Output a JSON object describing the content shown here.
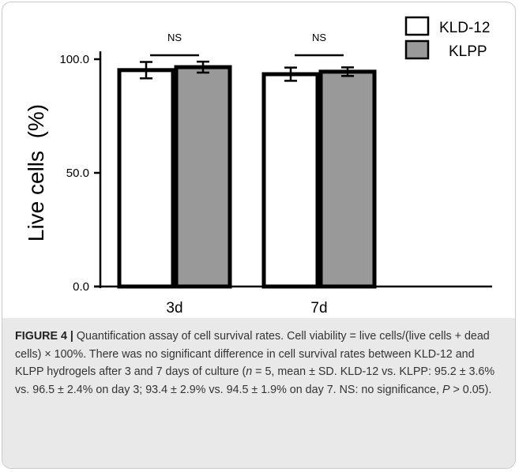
{
  "chart_data": {
    "type": "bar",
    "categories": [
      "3d",
      "7d"
    ],
    "ylabel": "Live cells  (%)",
    "ylim": [
      0,
      100
    ],
    "yticks": [
      0,
      50,
      100
    ],
    "ytick_labels": [
      "0.0",
      "50.0",
      "100.0"
    ],
    "series": [
      {
        "name": "KLD-12",
        "color": "#ffffff",
        "values": [
          95.2,
          93.4
        ],
        "errors": [
          3.6,
          2.9
        ]
      },
      {
        "name": "KLPP",
        "color": "#999999",
        "values": [
          96.5,
          94.5
        ],
        "errors": [
          2.4,
          1.9
        ]
      }
    ],
    "annotations": [
      "NS",
      "NS"
    ],
    "legend_position": "top-right",
    "grid": false
  },
  "caption": {
    "label": "FIGURE 4 |",
    "text_1": " Quantification assay of cell survival rates. Cell viability = live cells/(live cells + dead cells) × 100%. There was no significant difference in cell survival rates between KLD-12 and KLPP hydrogels after 3 and 7 days of culture (",
    "n_symbol": "n",
    "text_2": " = 5, mean ± SD. KLD-12 vs. KLPP: 95.2 ± 3.6% vs. 96.5 ± 2.4% on day 3; 93.4 ± 2.9% vs. 94.5 ± 1.9% on day 7. NS: no significance, ",
    "p_symbol": "P",
    "text_3": " > 0.05)."
  }
}
